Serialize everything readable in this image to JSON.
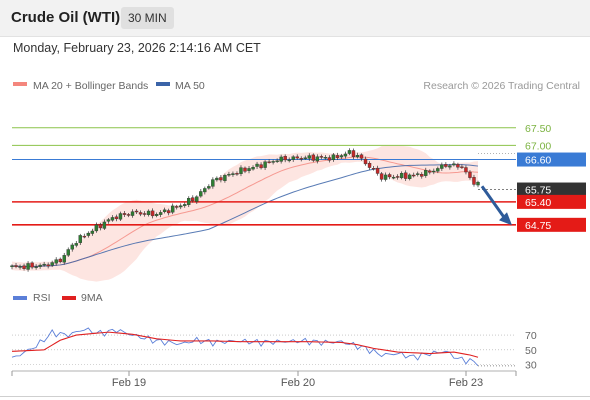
{
  "header": {
    "title": "Crude Oil (WTI)",
    "interval": "30 MIN"
  },
  "datetime": "Monday, February 23, 2026 2:14:16 AM CET",
  "legend": {
    "ma20_label": "MA 20 + Bollinger Bands",
    "ma50_label": "MA 50",
    "credit": "Research © 2026 Trading Central"
  },
  "colors": {
    "ma20": "#f4867d",
    "bollinger": "#fde0dc",
    "ma50": "#3b64a8",
    "candle_up": "#2e7d32",
    "candle_down": "#c62828",
    "resistance": "#8bc34a",
    "pivot_blue": "#3a7bd5",
    "support_red": "#e41b17",
    "current": "#333333",
    "arrow": "#2e5b9a",
    "rsi": "#5b7fd8",
    "rsi_ma": "#e02020"
  },
  "chart_data": {
    "type": "candlestick",
    "price_axis": {
      "ylim": [
        63.3,
        68.4
      ]
    },
    "x_ticks": [
      "Feb 19",
      "Feb 20",
      "Feb 23"
    ],
    "levels": [
      {
        "label": "67.50",
        "value": 67.5,
        "kind": "resistance"
      },
      {
        "label": "67.00",
        "value": 67.0,
        "kind": "resistance"
      },
      {
        "label": "66.60",
        "value": 66.6,
        "kind": "pivot"
      },
      {
        "label": "65.75",
        "value": 65.75,
        "kind": "current"
      },
      {
        "label": "65.40",
        "value": 65.4,
        "kind": "support"
      },
      {
        "label": "64.75",
        "value": 64.75,
        "kind": "support"
      }
    ],
    "price_anchors": [
      [
        0,
        63.55
      ],
      [
        8,
        63.6
      ],
      [
        12,
        63.75
      ],
      [
        16,
        64.3
      ],
      [
        20,
        64.6
      ],
      [
        25,
        64.95
      ],
      [
        30,
        65.1
      ],
      [
        36,
        65.05
      ],
      [
        42,
        65.3
      ],
      [
        46,
        65.55
      ],
      [
        50,
        66.0
      ],
      [
        56,
        66.25
      ],
      [
        62,
        66.45
      ],
      [
        66,
        66.6
      ],
      [
        72,
        66.65
      ],
      [
        80,
        66.65
      ],
      [
        84,
        66.8
      ],
      [
        86,
        66.7
      ],
      [
        92,
        66.1
      ],
      [
        100,
        66.15
      ],
      [
        104,
        66.25
      ],
      [
        108,
        66.45
      ],
      [
        112,
        66.4
      ],
      [
        114,
        66.05
      ],
      [
        116,
        65.9
      ]
    ],
    "candle_count": 117,
    "projection": {
      "from": 65.9,
      "to": 64.85
    },
    "rsi": {
      "labels": [
        "70",
        "50",
        "30"
      ],
      "ylim": [
        20,
        85
      ],
      "legend": [
        "RSI",
        "9MA"
      ],
      "rsi_anchors": [
        [
          0,
          38
        ],
        [
          6,
          55
        ],
        [
          10,
          73
        ],
        [
          14,
          70
        ],
        [
          18,
          78
        ],
        [
          22,
          72
        ],
        [
          26,
          77
        ],
        [
          30,
          70
        ],
        [
          36,
          62
        ],
        [
          42,
          58
        ],
        [
          46,
          63
        ],
        [
          50,
          60
        ],
        [
          56,
          62
        ],
        [
          62,
          60
        ],
        [
          66,
          61
        ],
        [
          72,
          62
        ],
        [
          78,
          60
        ],
        [
          82,
          61
        ],
        [
          86,
          55
        ],
        [
          88,
          52
        ],
        [
          92,
          43
        ],
        [
          96,
          45
        ],
        [
          100,
          40
        ],
        [
          104,
          45
        ],
        [
          108,
          48
        ],
        [
          111,
          38
        ],
        [
          114,
          35
        ],
        [
          116,
          32
        ]
      ],
      "ma_anchors": [
        [
          0,
          48
        ],
        [
          8,
          50
        ],
        [
          12,
          63
        ],
        [
          16,
          70
        ],
        [
          24,
          74
        ],
        [
          30,
          71
        ],
        [
          36,
          65
        ],
        [
          42,
          62
        ],
        [
          50,
          62
        ],
        [
          58,
          61
        ],
        [
          66,
          61
        ],
        [
          74,
          61
        ],
        [
          82,
          60
        ],
        [
          86,
          57
        ],
        [
          90,
          52
        ],
        [
          96,
          47
        ],
        [
          104,
          45
        ],
        [
          110,
          47
        ],
        [
          114,
          43
        ],
        [
          116,
          40
        ]
      ]
    }
  }
}
